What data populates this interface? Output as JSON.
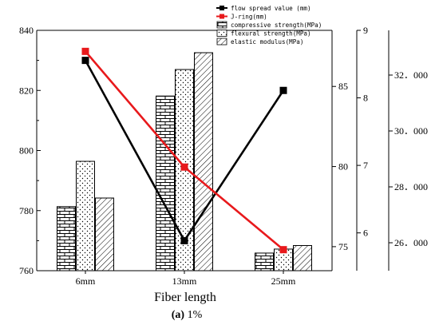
{
  "chart_data": {
    "type": "bar",
    "categories": [
      "6mm",
      "13mm",
      "25mm"
    ],
    "xlabel": "Fiber length",
    "caption_bold": "(a)",
    "caption_rest": " 1%",
    "axes": {
      "left": {
        "ylim": [
          760,
          840
        ],
        "ticks": [
          760,
          780,
          800,
          820,
          840
        ],
        "tick_labels": [
          "760",
          "780",
          "800",
          "820",
          "840"
        ]
      },
      "right1": {
        "ylim": [
          73.5,
          88.5
        ],
        "ticks": [
          75,
          80,
          85
        ],
        "tick_labels": [
          "75",
          "80",
          "85"
        ]
      },
      "right2": {
        "ylim": [
          5.44,
          9.0
        ],
        "ticks": [
          6,
          7,
          8,
          9
        ],
        "tick_labels": [
          "6",
          "7",
          "8",
          "9"
        ]
      },
      "right3": {
        "ylim": [
          25.0,
          33.6
        ],
        "ticks": [
          26,
          28,
          30,
          32
        ],
        "tick_labels": [
          "26．000",
          "28．000",
          "30．000",
          "32．000"
        ]
      }
    },
    "series": [
      {
        "name": "flow spread value (mm)",
        "kind": "line",
        "axis": "left",
        "color": "#000000",
        "values": [
          830,
          770,
          820
        ]
      },
      {
        "name": "J-ring(mm)",
        "kind": "line",
        "axis": "left",
        "color": "#e8191c",
        "values": [
          833,
          794.5,
          767
        ]
      },
      {
        "name": "compressive strength(MPa)",
        "kind": "bar",
        "axis": "right1",
        "pattern": "brick",
        "values": [
          77.5,
          84.4,
          74.6
        ]
      },
      {
        "name": "flexural strength(MPa)",
        "kind": "bar",
        "axis": "right2",
        "pattern": "dots",
        "values": [
          7.06,
          8.42,
          5.76
        ]
      },
      {
        "name": "elastic modulus(MPa)",
        "kind": "bar",
        "axis": "right3",
        "pattern": "hatch",
        "values": [
          27.6,
          32.8,
          25.9
        ]
      }
    ]
  }
}
